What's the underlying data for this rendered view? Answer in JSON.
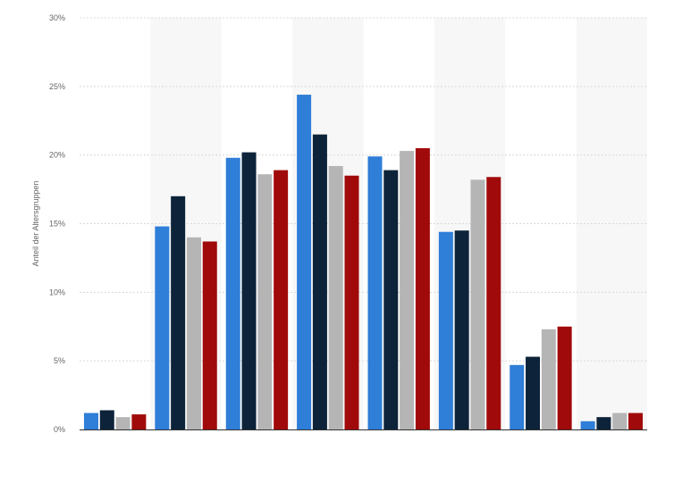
{
  "chart_data": {
    "type": "bar",
    "title": "",
    "xlabel": "",
    "ylabel": "Anteil der Altersgruppen",
    "ylim": [
      0,
      30
    ],
    "yticks": [
      0,
      5,
      10,
      15,
      20,
      25,
      30
    ],
    "ytick_labels": [
      "0%",
      "5%",
      "10%",
      "15%",
      "20%",
      "25%",
      "30%"
    ],
    "categories": [
      "",
      "",
      "",
      "",
      "",
      "",
      "",
      ""
    ],
    "series": [
      {
        "color": "#2f7ed8",
        "values": [
          1.2,
          14.8,
          19.8,
          24.4,
          19.9,
          14.4,
          4.7,
          0.6
        ]
      },
      {
        "color": "#0d233a",
        "values": [
          1.4,
          17.0,
          20.2,
          21.5,
          18.9,
          14.5,
          5.3,
          0.9
        ]
      },
      {
        "color": "#b5b5b5",
        "values": [
          0.9,
          14.0,
          18.6,
          19.2,
          20.3,
          18.2,
          7.3,
          1.2
        ]
      },
      {
        "color": "#a10a0a",
        "values": [
          1.1,
          13.7,
          18.9,
          18.5,
          20.5,
          18.4,
          7.5,
          1.2
        ]
      }
    ],
    "grid": true,
    "legend": "none"
  }
}
